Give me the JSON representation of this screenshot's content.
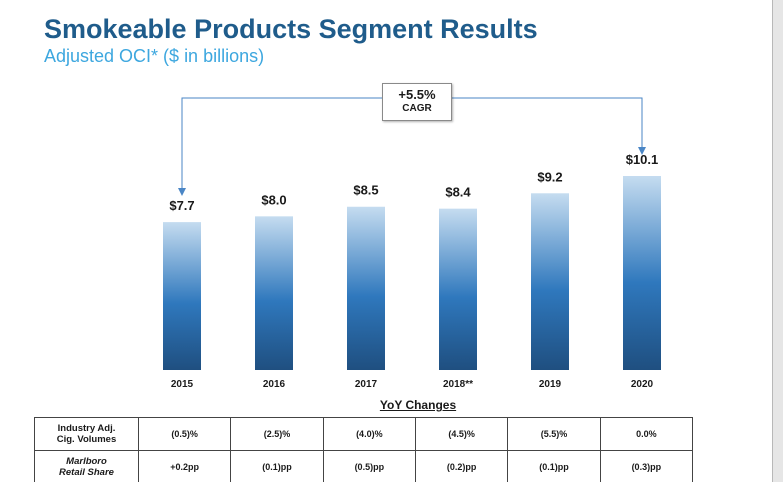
{
  "title": "Smokeable Products Segment Results",
  "subtitle": "Adjusted OCI* ($ in billions)",
  "cagr": {
    "value": "+5.5%",
    "label": "CAGR"
  },
  "chart_data": {
    "type": "bar",
    "title": "Smokeable Products Segment Results",
    "subtitle": "Adjusted OCI* ($ in billions)",
    "categories": [
      "2015",
      "2016",
      "2017",
      "2018**",
      "2019",
      "2020"
    ],
    "values": [
      7.7,
      8.0,
      8.5,
      8.4,
      9.2,
      10.1
    ],
    "value_labels": [
      "$7.7",
      "$8.0",
      "$8.5",
      "$8.4",
      "$9.2",
      "$10.1"
    ],
    "xlabel": "",
    "ylabel": "",
    "ylim": [
      0,
      10.1
    ],
    "grid": false,
    "annotation": "+5.5% CAGR from 2015 to 2020",
    "bar_colors": {
      "top": "#c5dcf0",
      "middle": "#2f78bd",
      "bottom": "#1f4f80"
    }
  },
  "yoy": {
    "title": "YoY Changes",
    "rows": [
      {
        "label_line1": "Industry Adj.",
        "label_line2": "Cig. Volumes",
        "cells": [
          "(0.5)%",
          "(2.5)%",
          "(4.0)%",
          "(4.5)%",
          "(5.5)%",
          "0.0%"
        ]
      },
      {
        "label_line1": "Marlboro",
        "label_line2": "Retail Share",
        "cells": [
          "+0.2pp",
          "(0.1)pp",
          "(0.5)pp",
          "(0.2)pp",
          "(0.1)pp",
          "(0.3)pp"
        ]
      }
    ]
  }
}
